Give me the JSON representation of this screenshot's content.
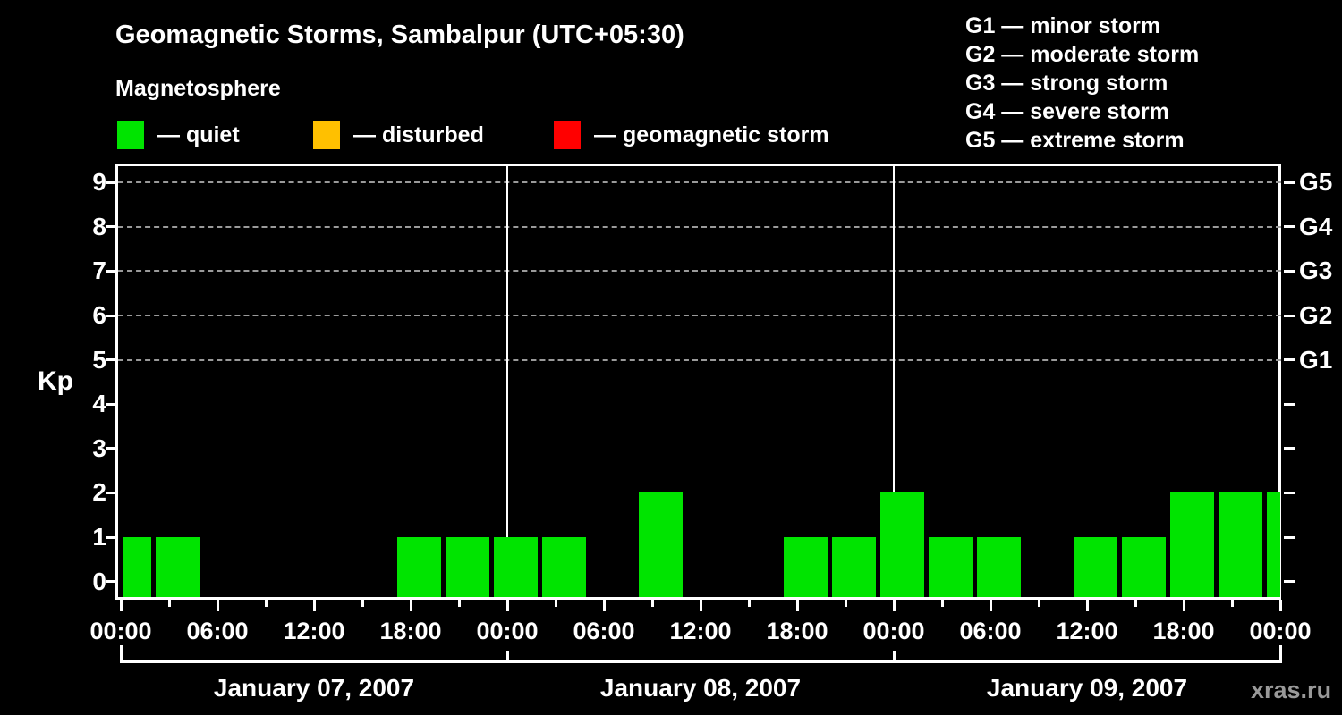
{
  "title": "Geomagnetic Storms, Sambalpur (UTC+05:30)",
  "subtitle": "Magnetosphere",
  "legend": {
    "items": [
      {
        "state": "quiet",
        "label": "— quiet",
        "color": "#00e400"
      },
      {
        "state": "disturbed",
        "label": "— disturbed",
        "color": "#ffc000"
      },
      {
        "state": "storm",
        "label": "— geomagnetic storm",
        "color": "#ff0000"
      }
    ]
  },
  "g_legend": [
    "G1 — minor storm",
    "G2 — moderate storm",
    "G3 — strong storm",
    "G4 — severe storm",
    "G5 — extreme storm"
  ],
  "watermark": "xras.ru",
  "chart_data": {
    "type": "bar",
    "ylabel": "Kp",
    "ylim": [
      0,
      9.7
    ],
    "y_ticks": [
      "0",
      "1",
      "2",
      "3",
      "4",
      "5",
      "6",
      "7",
      "8",
      "9"
    ],
    "right_axis": [
      {
        "label": "G5",
        "kp": 9
      },
      {
        "label": "G4",
        "kp": 8
      },
      {
        "label": "G3",
        "kp": 7
      },
      {
        "label": "G2",
        "kp": 6
      },
      {
        "label": "G1",
        "kp": 5
      }
    ],
    "grid_levels_kp": [
      5,
      6,
      7,
      8,
      9
    ],
    "x_hours_total": 72,
    "x_major_tick_hours": 6,
    "x_minor_tick_hours": 3,
    "x_tick_labels": [
      "00:00",
      "06:00",
      "12:00",
      "18:00",
      "00:00",
      "06:00",
      "12:00",
      "18:00",
      "00:00",
      "06:00",
      "12:00",
      "18:00",
      "00:00"
    ],
    "day_boundaries_h": [
      24,
      48
    ],
    "days": [
      {
        "label": "January 07, 2007"
      },
      {
        "label": "January 08, 2007"
      },
      {
        "label": "January 09, 2007"
      }
    ],
    "bars": [
      {
        "start_h": 0,
        "end_h": 2,
        "kp": 1,
        "state": "quiet"
      },
      {
        "start_h": 2,
        "end_h": 5,
        "kp": 1,
        "state": "quiet"
      },
      {
        "start_h": 5,
        "end_h": 8,
        "kp": 0,
        "state": "quiet"
      },
      {
        "start_h": 8,
        "end_h": 11,
        "kp": 0,
        "state": "quiet"
      },
      {
        "start_h": 11,
        "end_h": 14,
        "kp": 0,
        "state": "quiet"
      },
      {
        "start_h": 14,
        "end_h": 17,
        "kp": 0,
        "state": "quiet"
      },
      {
        "start_h": 17,
        "end_h": 20,
        "kp": 1,
        "state": "quiet"
      },
      {
        "start_h": 20,
        "end_h": 23,
        "kp": 1,
        "state": "quiet"
      },
      {
        "start_h": 23,
        "end_h": 26,
        "kp": 1,
        "state": "quiet"
      },
      {
        "start_h": 26,
        "end_h": 29,
        "kp": 1,
        "state": "quiet"
      },
      {
        "start_h": 29,
        "end_h": 32,
        "kp": 0,
        "state": "quiet"
      },
      {
        "start_h": 32,
        "end_h": 35,
        "kp": 2,
        "state": "quiet"
      },
      {
        "start_h": 35,
        "end_h": 38,
        "kp": 0,
        "state": "quiet"
      },
      {
        "start_h": 38,
        "end_h": 41,
        "kp": 0,
        "state": "quiet"
      },
      {
        "start_h": 41,
        "end_h": 44,
        "kp": 1,
        "state": "quiet"
      },
      {
        "start_h": 44,
        "end_h": 47,
        "kp": 1,
        "state": "quiet"
      },
      {
        "start_h": 47,
        "end_h": 50,
        "kp": 2,
        "state": "quiet"
      },
      {
        "start_h": 50,
        "end_h": 53,
        "kp": 1,
        "state": "quiet"
      },
      {
        "start_h": 53,
        "end_h": 56,
        "kp": 1,
        "state": "quiet"
      },
      {
        "start_h": 56,
        "end_h": 59,
        "kp": 0,
        "state": "quiet"
      },
      {
        "start_h": 59,
        "end_h": 62,
        "kp": 1,
        "state": "quiet"
      },
      {
        "start_h": 62,
        "end_h": 65,
        "kp": 1,
        "state": "quiet"
      },
      {
        "start_h": 65,
        "end_h": 68,
        "kp": 2,
        "state": "quiet"
      },
      {
        "start_h": 68,
        "end_h": 71,
        "kp": 2,
        "state": "quiet"
      },
      {
        "start_h": 71,
        "end_h": 72,
        "kp": 2,
        "state": "quiet"
      }
    ],
    "colors": {
      "quiet": "#00e400",
      "disturbed": "#ffc000",
      "storm": "#ff0000"
    }
  }
}
